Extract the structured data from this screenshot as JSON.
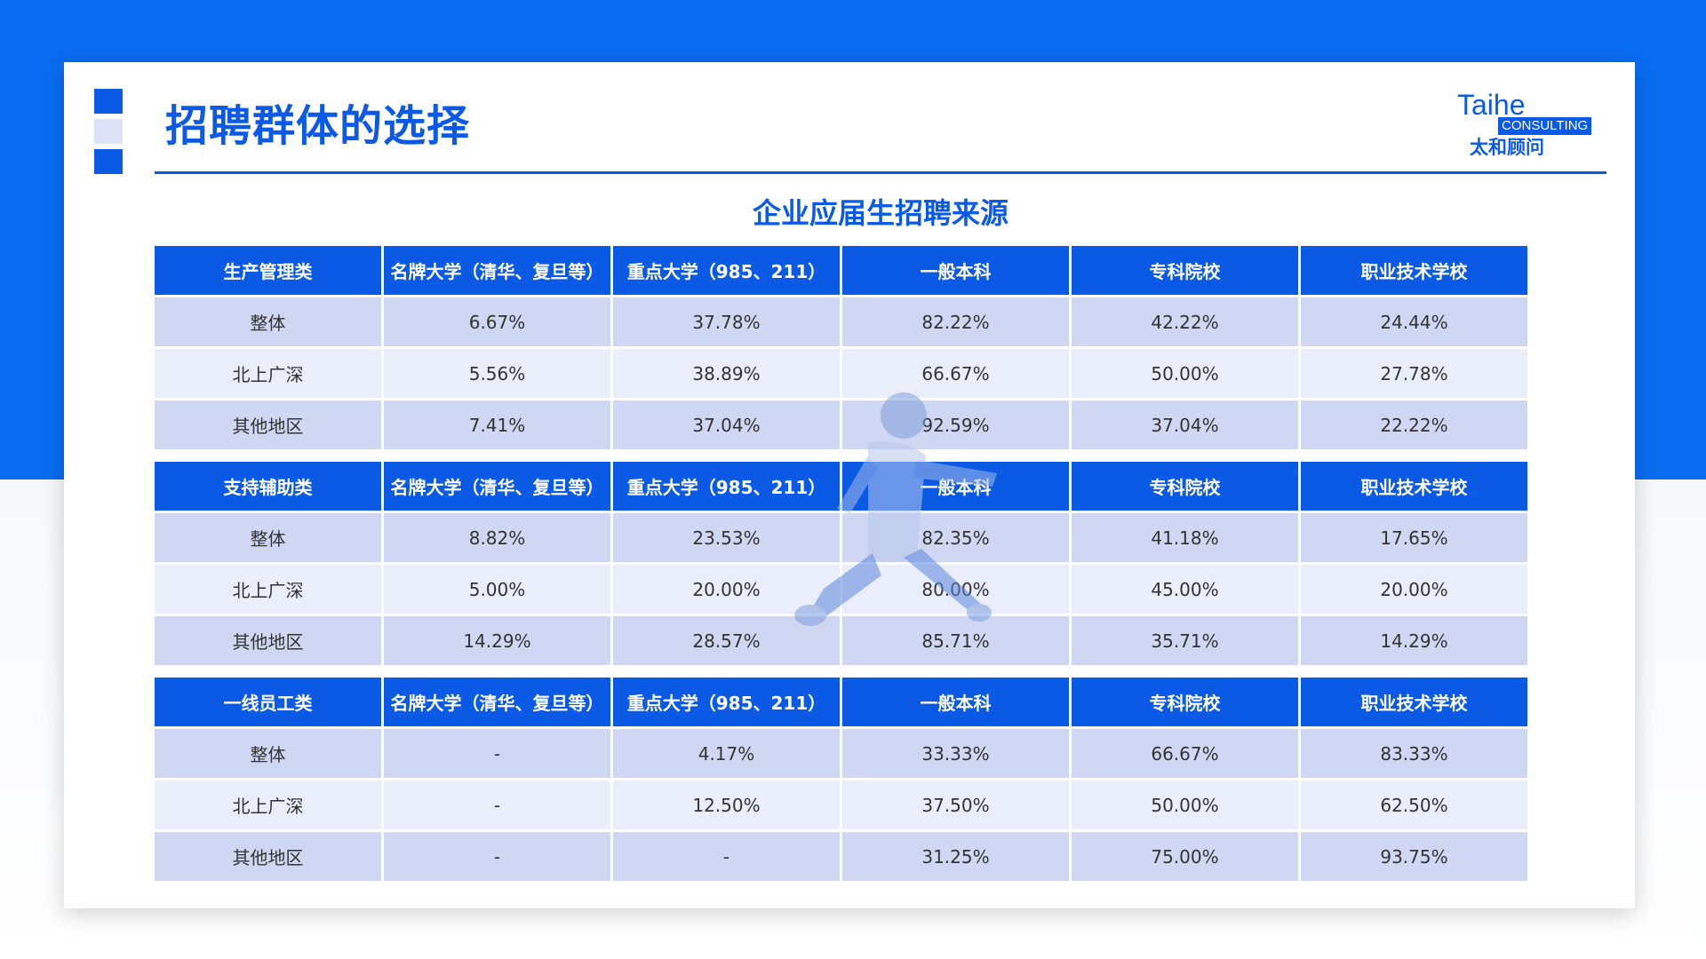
{
  "page": {
    "title": "招聘群体的选择",
    "table_title": "企业应届生招聘来源"
  },
  "logo": {
    "name": "Taihe",
    "consulting": "CONSULTING",
    "cn": "太和顾问"
  },
  "colors": {
    "primary": "#0a5ae6",
    "background_top": "#0a6cf0",
    "row_dark": "#c8d0f0",
    "row_light": "#e6eaf9"
  },
  "sections": [
    {
      "header": [
        "生产管理类",
        "名牌大学（清华、复旦等）",
        "重点大学（985、211）",
        "一般本科",
        "专科院校",
        "职业技术学校"
      ],
      "rows": [
        [
          "整体",
          "6.67%",
          "37.78%",
          "82.22%",
          "42.22%",
          "24.44%"
        ],
        [
          "北上广深",
          "5.56%",
          "38.89%",
          "66.67%",
          "50.00%",
          "27.78%"
        ],
        [
          "其他地区",
          "7.41%",
          "37.04%",
          "92.59%",
          "37.04%",
          "22.22%"
        ]
      ]
    },
    {
      "header": [
        "支持辅助类",
        "名牌大学（清华、复旦等）",
        "重点大学（985、211）",
        "一般本科",
        "专科院校",
        "职业技术学校"
      ],
      "rows": [
        [
          "整体",
          "8.82%",
          "23.53%",
          "82.35%",
          "41.18%",
          "17.65%"
        ],
        [
          "北上广深",
          "5.00%",
          "20.00%",
          "80.00%",
          "45.00%",
          "20.00%"
        ],
        [
          "其他地区",
          "14.29%",
          "28.57%",
          "85.71%",
          "35.71%",
          "14.29%"
        ]
      ]
    },
    {
      "header": [
        "一线员工类",
        "名牌大学（清华、复旦等）",
        "重点大学（985、211）",
        "一般本科",
        "专科院校",
        "职业技术学校"
      ],
      "rows": [
        [
          "整体",
          "-",
          "4.17%",
          "33.33%",
          "66.67%",
          "83.33%"
        ],
        [
          "北上广深",
          "-",
          "12.50%",
          "37.50%",
          "50.00%",
          "62.50%"
        ],
        [
          "其他地区",
          "-",
          "-",
          "31.25%",
          "75.00%",
          "93.75%"
        ]
      ]
    }
  ]
}
